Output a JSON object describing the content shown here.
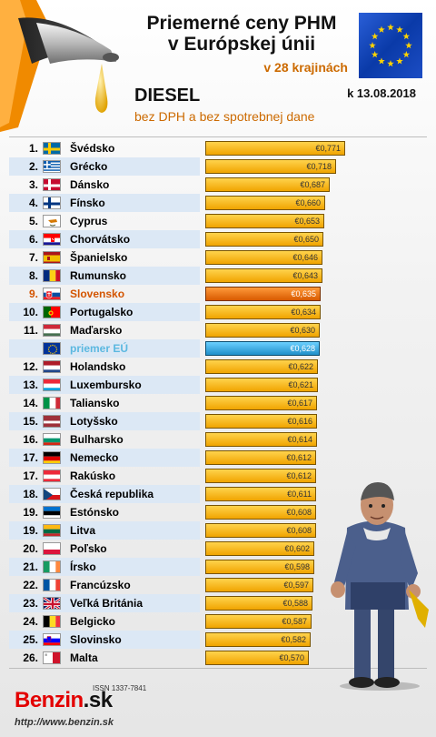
{
  "header": {
    "title_line1": "Priemerné ceny PHM",
    "title_line2": "v Európskej únii",
    "subtitle": "v 28 krajinách",
    "fuel": "DIESEL",
    "date": "k 13.08.2018",
    "note": "bez DPH a bez spotrebnej dane"
  },
  "footer": {
    "issn": "ISSN 1337-7841",
    "logo_main": "Benzin",
    "logo_tld": ".sk",
    "url": "http://www.benzin.sk"
  },
  "colors": {
    "bar": "#f0a400",
    "highlight": "#d85a00",
    "average": "#1f8fc9",
    "accent_text": "#cc6a00"
  },
  "chart_data": {
    "type": "bar",
    "orientation": "horizontal",
    "title": "Priemerné ceny PHM v Európskej únii",
    "unit": "€",
    "xlim": [
      0,
      0.8
    ],
    "rows": [
      {
        "rank": "1.",
        "country": "Švédsko",
        "value": 0.771,
        "label": "€0,771",
        "flag": "se"
      },
      {
        "rank": "2.",
        "country": "Grécko",
        "value": 0.718,
        "label": "€0,718",
        "flag": "gr"
      },
      {
        "rank": "3.",
        "country": "Dánsko",
        "value": 0.687,
        "label": "€0,687",
        "flag": "dk"
      },
      {
        "rank": "4.",
        "country": "Fínsko",
        "value": 0.66,
        "label": "€0,660",
        "flag": "fi"
      },
      {
        "rank": "5.",
        "country": "Cyprus",
        "value": 0.653,
        "label": "€0,653",
        "flag": "cy"
      },
      {
        "rank": "6.",
        "country": "Chorvátsko",
        "value": 0.65,
        "label": "€0,650",
        "flag": "hr"
      },
      {
        "rank": "7.",
        "country": "Španielsko",
        "value": 0.646,
        "label": "€0,646",
        "flag": "es"
      },
      {
        "rank": "8.",
        "country": "Rumunsko",
        "value": 0.643,
        "label": "€0,643",
        "flag": "ro"
      },
      {
        "rank": "9.",
        "country": "Slovensko",
        "value": 0.635,
        "label": "€0,635",
        "flag": "sk",
        "type": "highlight"
      },
      {
        "rank": "10.",
        "country": "Portugalsko",
        "value": 0.634,
        "label": "€0,634",
        "flag": "pt"
      },
      {
        "rank": "11.",
        "country": "Maďarsko",
        "value": 0.63,
        "label": "€0,630",
        "flag": "hu"
      },
      {
        "rank": "",
        "country": "priemer EÚ",
        "value": 0.628,
        "label": "€0,628",
        "flag": "eu",
        "type": "average"
      },
      {
        "rank": "12.",
        "country": "Holandsko",
        "value": 0.622,
        "label": "€0,622",
        "flag": "nl"
      },
      {
        "rank": "13.",
        "country": "Luxembursko",
        "value": 0.621,
        "label": "€0,621",
        "flag": "lu"
      },
      {
        "rank": "14.",
        "country": "Taliansko",
        "value": 0.617,
        "label": "€0,617",
        "flag": "it"
      },
      {
        "rank": "15.",
        "country": "Lotyšsko",
        "value": 0.616,
        "label": "€0,616",
        "flag": "lv"
      },
      {
        "rank": "16.",
        "country": "Bulharsko",
        "value": 0.614,
        "label": "€0,614",
        "flag": "bg"
      },
      {
        "rank": "17.",
        "country": "Nemecko",
        "value": 0.612,
        "label": "€0,612",
        "flag": "de"
      },
      {
        "rank": "17.",
        "country": "Rakúsko",
        "value": 0.612,
        "label": "€0,612",
        "flag": "at"
      },
      {
        "rank": "18.",
        "country": "Česká republika",
        "value": 0.611,
        "label": "€0,611",
        "flag": "cz"
      },
      {
        "rank": "19.",
        "country": "Estónsko",
        "value": 0.608,
        "label": "€0,608",
        "flag": "ee"
      },
      {
        "rank": "19.",
        "country": "Litva",
        "value": 0.608,
        "label": "€0,608",
        "flag": "lt"
      },
      {
        "rank": "20.",
        "country": "Poľsko",
        "value": 0.602,
        "label": "€0,602",
        "flag": "pl"
      },
      {
        "rank": "21.",
        "country": "Írsko",
        "value": 0.598,
        "label": "€0,598",
        "flag": "ie"
      },
      {
        "rank": "22.",
        "country": "Francúzsko",
        "value": 0.597,
        "label": "€0,597",
        "flag": "fr"
      },
      {
        "rank": "23.",
        "country": "Veľká Británia",
        "value": 0.588,
        "label": "€0,588",
        "flag": "gb"
      },
      {
        "rank": "24.",
        "country": "Belgicko",
        "value": 0.587,
        "label": "€0,587",
        "flag": "be"
      },
      {
        "rank": "25.",
        "country": "Slovinsko",
        "value": 0.582,
        "label": "€0,582",
        "flag": "si"
      },
      {
        "rank": "26.",
        "country": "Malta",
        "value": 0.57,
        "label": "€0,570",
        "flag": "mt"
      }
    ]
  }
}
